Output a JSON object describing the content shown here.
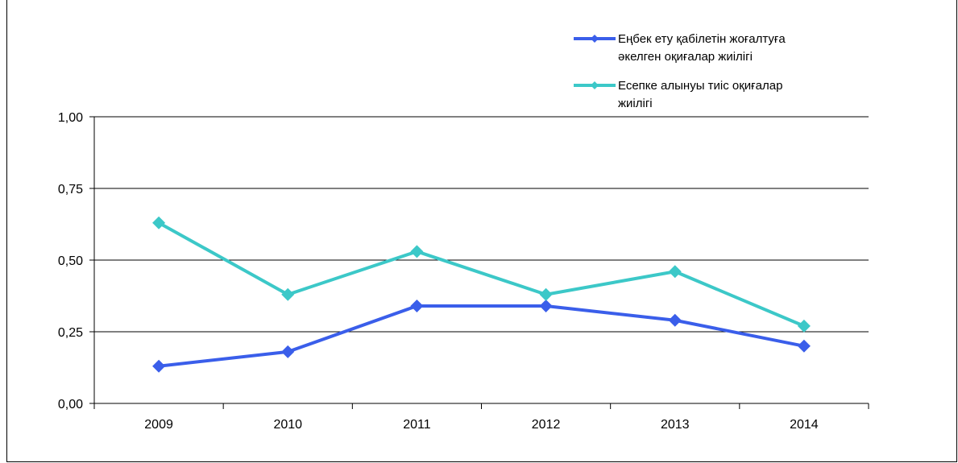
{
  "chart_data": {
    "type": "line",
    "categories": [
      "2009",
      "2010",
      "2011",
      "2012",
      "2013",
      "2014"
    ],
    "ylim": [
      0,
      1
    ],
    "yticks": [
      "0,00",
      "0,25",
      "0,50",
      "0,75",
      "1,00"
    ],
    "ytick_values": [
      0,
      0.25,
      0.5,
      0.75,
      1.0
    ],
    "grid": "horizontal",
    "legend_position": "top-right",
    "series": [
      {
        "name_lines": [
          "Еңбек ету қабілетін жоғалтуға",
          "әкелген оқиғалар жиілігі"
        ],
        "color": "#3A5EEA",
        "values": [
          0.13,
          0.18,
          0.34,
          0.34,
          0.29,
          0.2
        ]
      },
      {
        "name_lines": [
          "Есепке алынуы тиіс оқиғалар",
          "жиілігі"
        ],
        "color": "#3CC8C8",
        "values": [
          0.63,
          0.38,
          0.53,
          0.38,
          0.46,
          0.27
        ]
      }
    ]
  }
}
